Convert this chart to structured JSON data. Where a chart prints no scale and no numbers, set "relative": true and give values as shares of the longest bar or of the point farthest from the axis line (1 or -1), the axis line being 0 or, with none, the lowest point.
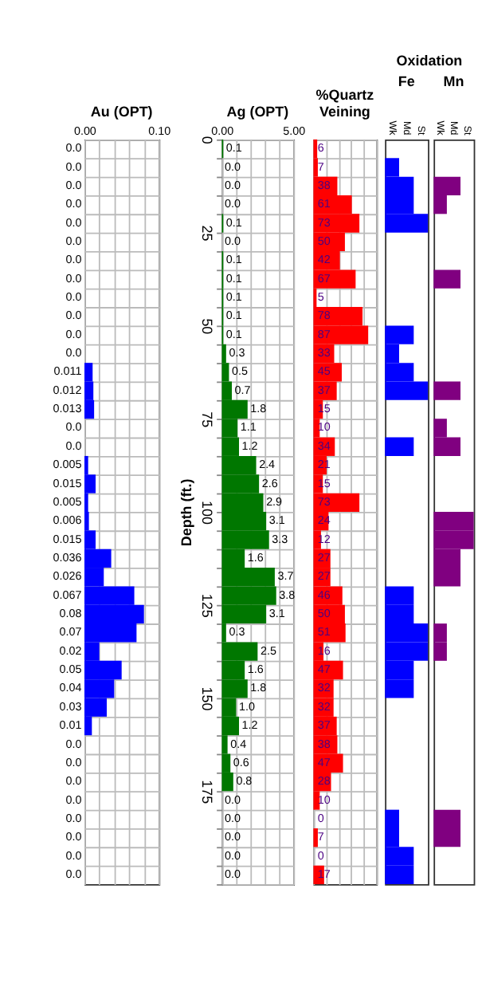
{
  "chart_data": [
    {
      "type": "bar",
      "orientation": "horizontal",
      "title": "Au (OPT)",
      "categories": [
        null,
        null,
        null,
        null,
        null,
        null,
        null,
        null,
        null,
        null,
        null,
        null,
        null,
        null,
        null,
        null,
        null,
        null,
        null,
        null,
        null,
        null,
        null,
        null,
        null,
        null,
        null,
        null,
        null,
        null,
        null,
        null,
        null,
        null,
        null,
        null,
        null,
        null,
        null,
        null
      ],
      "values": [
        0,
        0,
        0,
        0,
        0,
        0,
        0,
        0,
        0,
        0,
        0,
        0,
        0.011,
        0.012,
        0.013,
        0,
        0,
        0.005,
        0.015,
        0.005,
        0.006,
        0.015,
        0.036,
        0.026,
        0.067,
        0.08,
        0.07,
        0.02,
        0.05,
        0.04,
        0.03,
        0.01,
        0,
        0,
        0,
        0,
        0,
        0,
        0,
        0
      ],
      "value_labels": [
        "0.0",
        "0.0",
        "0.0",
        "0.0",
        "0.0",
        "0.0",
        "0.0",
        "0.0",
        "0.0",
        "0.0",
        "0.0",
        "0.0",
        "0.011",
        "0.012",
        "0.013",
        "0.0",
        "0.0",
        "0.005",
        "0.015",
        "0.005",
        "0.006",
        "0.015",
        "0.036",
        "0.026",
        "0.067",
        "0.08",
        "0.07",
        "0.02",
        "0.05",
        "0.04",
        "0.03",
        "0.01",
        "0.0",
        "0.0",
        "0.0",
        "0.0",
        "0.0",
        "0.0",
        "0.0",
        "0.0"
      ],
      "color": "#0000ff",
      "xlim": [
        0,
        0.1
      ],
      "xticks": [
        {
          "value": 0,
          "label": "0.00"
        },
        {
          "value": 0.02,
          "label": null
        },
        {
          "value": 0.04,
          "label": null
        },
        {
          "value": 0.06,
          "label": null
        },
        {
          "value": 0.08,
          "label": null
        },
        {
          "value": 0.1,
          "label": "0.10"
        }
      ],
      "grid": true
    },
    {
      "type": "bar",
      "orientation": "horizontal",
      "title": "Ag (OPT)",
      "ylabel": "Depth (ft.)",
      "x": [
        2.5,
        7.5,
        12.5,
        17.5,
        22.5,
        27.5,
        32.5,
        37.5,
        42.5,
        47.5,
        52.5,
        57.5,
        62.5,
        67.5,
        72.5,
        77.5,
        82.5,
        87.5,
        92.5,
        97.5,
        102.5,
        107.5,
        112.5,
        117.5,
        122.5,
        127.5,
        132.5,
        137.5,
        142.5,
        147.5,
        152.5,
        157.5,
        162.5,
        167.5,
        172.5,
        177.5,
        182.5,
        187.5,
        192.5,
        197.5
      ],
      "values": [
        0.1,
        0,
        0,
        0,
        0.1,
        0,
        0.1,
        0.1,
        0.1,
        0.1,
        0.1,
        0.3,
        0.5,
        0.7,
        1.8,
        1.1,
        1.2,
        2.4,
        2.6,
        2.9,
        3.1,
        3.3,
        1.6,
        3.7,
        3.8,
        3.1,
        0.3,
        2.5,
        1.6,
        1.8,
        1.0,
        1.2,
        0.4,
        0.6,
        0.8,
        0,
        0,
        0,
        0,
        0
      ],
      "value_labels": [
        "0.1",
        "0.0",
        "0.0",
        "0.0",
        "0.1",
        "0.0",
        "0.1",
        "0.1",
        "0.1",
        "0.1",
        "0.1",
        "0.3",
        "0.5",
        "0.7",
        "1.8",
        "1.1",
        "1.2",
        "2.4",
        "2.6",
        "2.9",
        "3.1",
        "3.3",
        "1.6",
        "3.7",
        "3.8",
        "3.1",
        "0.3",
        "2.5",
        "1.6",
        "1.8",
        "1.0",
        "1.2",
        "0.4",
        "0.6",
        "0.8",
        "0.0",
        "0.0",
        "0.0",
        "0.0",
        "0.0"
      ],
      "color": "#007700",
      "xlim": [
        0,
        5
      ],
      "xticks": [
        {
          "value": 0,
          "label": "0.00"
        },
        {
          "value": 1,
          "label": null
        },
        {
          "value": 2,
          "label": null
        },
        {
          "value": 3,
          "label": null
        },
        {
          "value": 4,
          "label": null
        },
        {
          "value": 5,
          "label": "5.00"
        }
      ],
      "ylim": [
        200,
        0
      ],
      "yticks": [
        0,
        {
          "value": 5,
          "label": null
        },
        {
          "value": 10,
          "label": null
        },
        {
          "value": 15,
          "label": null
        },
        {
          "value": 20,
          "label": null
        },
        25,
        {
          "value": 30,
          "label": null
        },
        {
          "value": 35,
          "label": null
        },
        {
          "value": 40,
          "label": null
        },
        {
          "value": 45,
          "label": null
        },
        50,
        {
          "value": 55,
          "label": null
        },
        {
          "value": 60,
          "label": null
        },
        {
          "value": 65,
          "label": null
        },
        {
          "value": 70,
          "label": null
        },
        75,
        {
          "value": 80,
          "label": null
        },
        {
          "value": 85,
          "label": null
        },
        {
          "value": 90,
          "label": null
        },
        {
          "value": 95,
          "label": null
        },
        100,
        {
          "value": 105,
          "label": null
        },
        {
          "value": 110,
          "label": null
        },
        {
          "value": 115,
          "label": null
        },
        {
          "value": 120,
          "label": null
        },
        125,
        {
          "value": 130,
          "label": null
        },
        {
          "value": 135,
          "label": null
        },
        {
          "value": 140,
          "label": null
        },
        {
          "value": 145,
          "label": null
        },
        150,
        {
          "value": 155,
          "label": null
        },
        {
          "value": 160,
          "label": null
        },
        {
          "value": 165,
          "label": null
        },
        {
          "value": 170,
          "label": null
        },
        175,
        {
          "value": 180,
          "label": null
        },
        {
          "value": 185,
          "label": null
        },
        {
          "value": 190,
          "label": null
        },
        {
          "value": 195,
          "label": null
        },
        {
          "value": 200,
          "label": null
        }
      ],
      "grid": true
    },
    {
      "type": "bar",
      "orientation": "horizontal",
      "title": "%Quartz Veining",
      "categories": [
        null,
        null,
        null,
        null,
        null,
        null,
        null,
        null,
        null,
        null,
        null,
        null,
        null,
        null,
        null,
        null,
        null,
        null,
        null,
        null,
        null,
        null,
        null,
        null,
        null,
        null,
        null,
        null,
        null,
        null,
        null,
        null,
        null,
        null,
        null,
        null,
        null,
        null,
        null,
        null
      ],
      "values": [
        6,
        7,
        38,
        61,
        73,
        50,
        42,
        67,
        5,
        78,
        87,
        33,
        45,
        37,
        15,
        10,
        34,
        21,
        15,
        73,
        24,
        12,
        27,
        27,
        46,
        50,
        51,
        16,
        47,
        32,
        32,
        37,
        38,
        47,
        28,
        10,
        0,
        7,
        0,
        17
      ],
      "data_labels": true,
      "color": "#ff0000",
      "xlim": [
        0,
        100
      ],
      "xticks": [
        {
          "value": 0,
          "label": null
        },
        {
          "value": 20,
          "label": null
        },
        {
          "value": 40,
          "label": null
        },
        {
          "value": 60,
          "label": null
        },
        {
          "value": 80,
          "label": null
        },
        {
          "value": 100,
          "label": null
        }
      ],
      "grid": true
    },
    {
      "type": "bar",
      "orientation": "horizontal",
      "title": "Fe",
      "annotations": [
        "Oxidation",
        "Wk",
        "Md",
        "St"
      ],
      "categories": [
        null,
        null,
        null,
        null,
        null,
        null,
        null,
        null,
        null,
        null,
        null,
        null,
        null,
        null,
        null,
        null,
        null,
        null,
        null,
        null,
        null,
        null,
        null,
        null,
        null,
        null,
        null,
        null,
        null,
        null,
        null,
        null,
        null,
        null,
        null,
        null,
        null,
        null,
        null,
        null
      ],
      "values": [
        0,
        0.33,
        0.67,
        0.67,
        1,
        0,
        0,
        0,
        0,
        0,
        0.67,
        0.33,
        0.67,
        1,
        0,
        0,
        0.67,
        0,
        0,
        0,
        0,
        0,
        0,
        0,
        0.67,
        0.67,
        1,
        1,
        0.67,
        0.67,
        0,
        0,
        0,
        0,
        0,
        0,
        0.33,
        0.33,
        0.67,
        0.67
      ],
      "color": "#0000ff",
      "relative": true
    },
    {
      "type": "bar",
      "orientation": "horizontal",
      "title": "Mn",
      "categories": [
        null,
        null,
        null,
        null,
        null,
        null,
        null,
        null,
        null,
        null,
        null,
        null,
        null,
        null,
        null,
        null,
        null,
        null,
        null,
        null,
        null,
        null,
        null,
        null,
        null,
        null,
        null,
        null,
        null,
        null,
        null,
        null,
        null,
        null,
        null,
        null,
        null,
        null,
        null,
        null
      ],
      "values": [
        0,
        0,
        0.67,
        0.33,
        0,
        0,
        0,
        0.67,
        0,
        0,
        0,
        0,
        0,
        0.67,
        0,
        0.33,
        0.67,
        0,
        0,
        0,
        1,
        1,
        0.67,
        0.67,
        0,
        0,
        0.33,
        0.33,
        0,
        0,
        0,
        0,
        0,
        0,
        0,
        0,
        0.67,
        0.67,
        0,
        0
      ],
      "annotations": [
        "Wk",
        "Md",
        "St"
      ],
      "color": "#800080",
      "relative": true
    }
  ]
}
